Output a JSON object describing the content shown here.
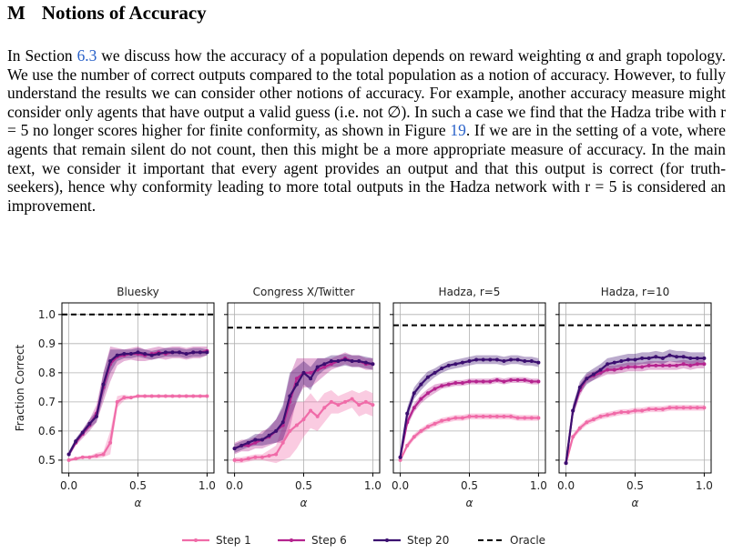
{
  "header": {
    "number": "M",
    "title": "Notions of Accuracy"
  },
  "paragraph": [
    "In Section ",
    "6.3",
    " we discuss how the accuracy of a population depends on reward weighting α and graph topology. We use the number of correct outputs compared to the total population as a notion of accuracy. However, to fully understand the results we can consider other notions of accuracy. For example, another accuracy measure might consider only agents that have output a valid guess (i.e. not ∅). In such a case we find that the Hadza tribe with r = 5 no longer scores higher for finite conformity, as shown in Figure ",
    "19",
    ". If we are in the setting of a vote, where agents that remain silent do not count, then this might be a more appropriate measure of accuracy. In the main text, we consider it important that every agent provides an output and that this output is correct (for truth-seekers), hence why conformity leading to more total outputs in the Hadza network with r = 5 is considered an improvement."
  ],
  "chart_data": [
    {
      "type": "line",
      "title": "Bluesky",
      "x_label": "α",
      "y_label": "Fraction Correct",
      "grid": true,
      "x": [
        0,
        0.05,
        0.1,
        0.15,
        0.2,
        0.25,
        0.3,
        0.35,
        0.4,
        0.45,
        0.5,
        0.55,
        0.6,
        0.65,
        0.7,
        0.75,
        0.8,
        0.85,
        0.9,
        0.95,
        1
      ],
      "xlim": [
        -0.05,
        1.05
      ],
      "xticks": [
        {
          "value": 0,
          "label": "0.0"
        },
        0.5,
        {
          "value": 1,
          "label": "1.0"
        }
      ],
      "ylim": [
        0.456,
        1.04
      ],
      "yticks": [
        0.5,
        0.6,
        0.7,
        0.8,
        0.9,
        {
          "value": 1,
          "label": "1.0"
        }
      ],
      "reference": {
        "name": "Oracle",
        "value": 1.0,
        "color": "#000000"
      },
      "series": [
        {
          "name": "Step 1",
          "color": "#f06ba8",
          "values": [
            0.5,
            0.505,
            0.51,
            0.51,
            0.515,
            0.52,
            0.56,
            0.7,
            0.715,
            0.715,
            0.72,
            0.72,
            0.72,
            0.72,
            0.72,
            0.72,
            0.72,
            0.72,
            0.72,
            0.72,
            0.72
          ],
          "errors": [
            0.005,
            0.005,
            0.005,
            0.005,
            0.01,
            0.01,
            0.04,
            0.02,
            0.01,
            0.005,
            0.005,
            0.005,
            0.005,
            0.005,
            0.005,
            0.005,
            0.005,
            0.005,
            0.005,
            0.005,
            0.005
          ]
        },
        {
          "name": "Step 6",
          "color": "#b5248f",
          "values": [
            0.52,
            0.56,
            0.59,
            0.62,
            0.66,
            0.75,
            0.83,
            0.855,
            0.86,
            0.865,
            0.865,
            0.86,
            0.865,
            0.87,
            0.865,
            0.87,
            0.87,
            0.865,
            0.87,
            0.87,
            0.875
          ],
          "errors": [
            0.01,
            0.01,
            0.015,
            0.02,
            0.03,
            0.05,
            0.06,
            0.03,
            0.02,
            0.02,
            0.025,
            0.02,
            0.02,
            0.02,
            0.02,
            0.02,
            0.02,
            0.02,
            0.02,
            0.02,
            0.015
          ]
        },
        {
          "name": "Step 20",
          "color": "#3b0f70",
          "values": [
            0.52,
            0.565,
            0.595,
            0.625,
            0.65,
            0.76,
            0.84,
            0.86,
            0.865,
            0.865,
            0.87,
            0.865,
            0.86,
            0.865,
            0.87,
            0.87,
            0.87,
            0.865,
            0.87,
            0.87,
            0.87
          ],
          "errors": [
            0.01,
            0.01,
            0.01,
            0.015,
            0.02,
            0.04,
            0.04,
            0.02,
            0.015,
            0.015,
            0.015,
            0.015,
            0.015,
            0.015,
            0.015,
            0.015,
            0.015,
            0.015,
            0.015,
            0.015,
            0.01
          ]
        }
      ]
    },
    {
      "type": "line",
      "title": "Congress X/Twitter",
      "x_label": "α",
      "grid": true,
      "x": [
        0,
        0.05,
        0.1,
        0.15,
        0.2,
        0.25,
        0.3,
        0.35,
        0.4,
        0.45,
        0.5,
        0.55,
        0.6,
        0.65,
        0.7,
        0.75,
        0.8,
        0.85,
        0.9,
        0.95,
        1
      ],
      "xlim": [
        -0.05,
        1.05
      ],
      "xticks": [
        {
          "value": 0,
          "label": "0.0"
        },
        0.5,
        {
          "value": 1,
          "label": "1.0"
        }
      ],
      "ylim": [
        0.456,
        1.04
      ],
      "yticks": [
        0.5,
        0.6,
        0.7,
        0.8,
        0.9,
        1
      ],
      "reference": {
        "name": "Oracle",
        "value": 0.955,
        "color": "#000000"
      },
      "series": [
        {
          "name": "Step 1",
          "color": "#f06ba8",
          "values": [
            0.5,
            0.5,
            0.505,
            0.51,
            0.51,
            0.515,
            0.52,
            0.56,
            0.6,
            0.62,
            0.64,
            0.67,
            0.65,
            0.68,
            0.7,
            0.69,
            0.7,
            0.71,
            0.69,
            0.7,
            0.69
          ],
          "errors": [
            0.01,
            0.01,
            0.01,
            0.01,
            0.01,
            0.02,
            0.03,
            0.06,
            0.09,
            0.08,
            0.06,
            0.06,
            0.05,
            0.05,
            0.04,
            0.03,
            0.03,
            0.03,
            0.04,
            0.04,
            0.04
          ]
        },
        {
          "name": "Step 6",
          "color": "#b5248f",
          "values": [
            0.54,
            0.55,
            0.55,
            0.56,
            0.57,
            0.58,
            0.6,
            0.62,
            0.7,
            0.78,
            0.8,
            0.8,
            0.81,
            0.82,
            0.83,
            0.84,
            0.85,
            0.84,
            0.84,
            0.83,
            0.83
          ],
          "errors": [
            0.02,
            0.02,
            0.02,
            0.02,
            0.03,
            0.03,
            0.04,
            0.06,
            0.09,
            0.07,
            0.05,
            0.05,
            0.04,
            0.03,
            0.02,
            0.02,
            0.02,
            0.02,
            0.02,
            0.02,
            0.02
          ]
        },
        {
          "name": "Step 20",
          "color": "#3b0f70",
          "values": [
            0.54,
            0.55,
            0.56,
            0.57,
            0.57,
            0.585,
            0.6,
            0.63,
            0.72,
            0.76,
            0.8,
            0.78,
            0.82,
            0.83,
            0.84,
            0.84,
            0.845,
            0.84,
            0.84,
            0.835,
            0.83
          ],
          "errors": [
            0.015,
            0.015,
            0.015,
            0.02,
            0.02,
            0.03,
            0.04,
            0.06,
            0.08,
            0.06,
            0.04,
            0.04,
            0.03,
            0.02,
            0.02,
            0.02,
            0.02,
            0.02,
            0.02,
            0.02,
            0.02
          ]
        }
      ]
    },
    {
      "type": "line",
      "title": "Hadza, r=5",
      "x_label": "α",
      "grid": true,
      "x": [
        0,
        0.05,
        0.1,
        0.15,
        0.2,
        0.25,
        0.3,
        0.35,
        0.4,
        0.45,
        0.5,
        0.55,
        0.6,
        0.65,
        0.7,
        0.75,
        0.8,
        0.85,
        0.9,
        0.95,
        1
      ],
      "xlim": [
        -0.05,
        1.05
      ],
      "xticks": [
        {
          "value": 0,
          "label": "0.0"
        },
        0.5,
        {
          "value": 1,
          "label": "1.0"
        }
      ],
      "ylim": [
        0.456,
        1.04
      ],
      "yticks": [
        0.5,
        0.6,
        0.7,
        0.8,
        0.9,
        1
      ],
      "reference": {
        "name": "Oracle",
        "value": 0.963,
        "color": "#000000"
      },
      "series": [
        {
          "name": "Step 1",
          "color": "#f06ba8",
          "values": [
            0.5,
            0.55,
            0.58,
            0.6,
            0.615,
            0.625,
            0.635,
            0.64,
            0.645,
            0.645,
            0.65,
            0.65,
            0.65,
            0.65,
            0.65,
            0.65,
            0.65,
            0.645,
            0.645,
            0.645,
            0.645
          ],
          "errors": [
            0.005,
            0.01,
            0.01,
            0.01,
            0.01,
            0.01,
            0.01,
            0.01,
            0.01,
            0.01,
            0.01,
            0.01,
            0.01,
            0.01,
            0.01,
            0.01,
            0.01,
            0.01,
            0.01,
            0.01,
            0.01
          ]
        },
        {
          "name": "Step 6",
          "color": "#b5248f",
          "values": [
            0.51,
            0.63,
            0.68,
            0.71,
            0.73,
            0.745,
            0.755,
            0.76,
            0.765,
            0.765,
            0.77,
            0.77,
            0.77,
            0.77,
            0.775,
            0.77,
            0.775,
            0.775,
            0.775,
            0.77,
            0.77
          ],
          "errors": [
            0.01,
            0.015,
            0.015,
            0.015,
            0.015,
            0.015,
            0.01,
            0.01,
            0.01,
            0.01,
            0.01,
            0.01,
            0.01,
            0.01,
            0.01,
            0.01,
            0.01,
            0.01,
            0.01,
            0.01,
            0.01
          ]
        },
        {
          "name": "Step 20",
          "color": "#3b0f70",
          "values": [
            0.51,
            0.66,
            0.73,
            0.76,
            0.785,
            0.8,
            0.815,
            0.825,
            0.83,
            0.835,
            0.84,
            0.845,
            0.845,
            0.845,
            0.845,
            0.84,
            0.845,
            0.845,
            0.84,
            0.84,
            0.835
          ],
          "errors": [
            0.01,
            0.02,
            0.02,
            0.02,
            0.02,
            0.015,
            0.015,
            0.015,
            0.015,
            0.015,
            0.015,
            0.015,
            0.015,
            0.015,
            0.015,
            0.015,
            0.015,
            0.015,
            0.015,
            0.015,
            0.015
          ]
        }
      ]
    },
    {
      "type": "line",
      "title": "Hadza, r=10",
      "x_label": "α",
      "grid": true,
      "x": [
        0,
        0.05,
        0.1,
        0.15,
        0.2,
        0.25,
        0.3,
        0.35,
        0.4,
        0.45,
        0.5,
        0.55,
        0.6,
        0.65,
        0.7,
        0.75,
        0.8,
        0.85,
        0.9,
        0.95,
        1
      ],
      "xlim": [
        -0.05,
        1.05
      ],
      "xticks": [
        {
          "value": 0,
          "label": "0.0"
        },
        0.5,
        {
          "value": 1,
          "label": "1.0"
        }
      ],
      "ylim": [
        0.456,
        1.04
      ],
      "yticks": [
        0.5,
        0.6,
        0.7,
        0.8,
        0.9,
        1
      ],
      "reference": {
        "name": "Oracle",
        "value": 0.963,
        "color": "#000000"
      },
      "series": [
        {
          "name": "Step 1",
          "color": "#f06ba8",
          "values": [
            0.49,
            0.58,
            0.61,
            0.63,
            0.64,
            0.65,
            0.655,
            0.66,
            0.665,
            0.665,
            0.67,
            0.67,
            0.675,
            0.675,
            0.675,
            0.68,
            0.68,
            0.68,
            0.68,
            0.68,
            0.68
          ],
          "errors": [
            0.005,
            0.01,
            0.01,
            0.01,
            0.01,
            0.01,
            0.01,
            0.01,
            0.01,
            0.01,
            0.01,
            0.01,
            0.01,
            0.01,
            0.01,
            0.01,
            0.01,
            0.01,
            0.01,
            0.01,
            0.01
          ]
        },
        {
          "name": "Step 6",
          "color": "#b5248f",
          "values": [
            0.49,
            0.67,
            0.74,
            0.78,
            0.79,
            0.8,
            0.81,
            0.81,
            0.815,
            0.82,
            0.82,
            0.82,
            0.825,
            0.825,
            0.825,
            0.825,
            0.825,
            0.83,
            0.825,
            0.83,
            0.83
          ],
          "errors": [
            0.01,
            0.02,
            0.02,
            0.015,
            0.015,
            0.015,
            0.015,
            0.015,
            0.015,
            0.015,
            0.015,
            0.015,
            0.015,
            0.015,
            0.015,
            0.015,
            0.015,
            0.015,
            0.015,
            0.015,
            0.015
          ]
        },
        {
          "name": "Step 20",
          "color": "#3b0f70",
          "values": [
            0.49,
            0.67,
            0.75,
            0.78,
            0.795,
            0.81,
            0.83,
            0.835,
            0.84,
            0.845,
            0.845,
            0.85,
            0.85,
            0.855,
            0.85,
            0.86,
            0.855,
            0.855,
            0.85,
            0.85,
            0.85
          ],
          "errors": [
            0.01,
            0.02,
            0.02,
            0.02,
            0.02,
            0.02,
            0.02,
            0.02,
            0.02,
            0.02,
            0.02,
            0.02,
            0.02,
            0.02,
            0.02,
            0.02,
            0.02,
            0.02,
            0.02,
            0.02,
            0.02
          ]
        }
      ]
    }
  ]
}
